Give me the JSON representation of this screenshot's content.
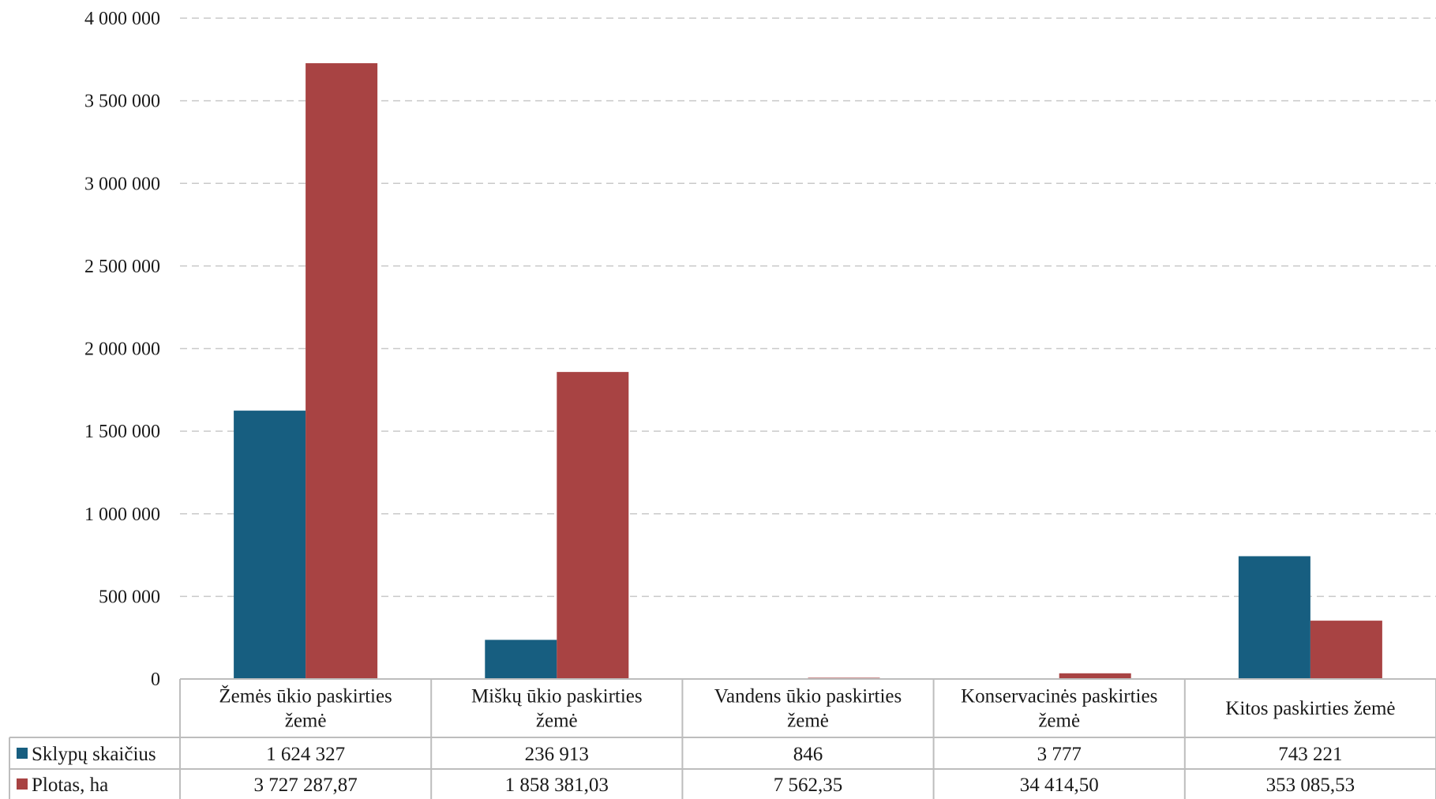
{
  "chart_data": {
    "type": "bar",
    "title": "",
    "xlabel": "",
    "ylabel": "",
    "ylim": [
      0,
      4000000
    ],
    "yticks": [
      0,
      500000,
      1000000,
      1500000,
      2000000,
      2500000,
      3000000,
      3500000,
      4000000
    ],
    "ytick_labels": [
      "0",
      "500 000",
      "1 000 000",
      "1 500 000",
      "2 000 000",
      "2 500 000",
      "3 000 000",
      "3 500 000",
      "4 000 000"
    ],
    "grid": true,
    "legend_placement": "data table, left",
    "categories": [
      [
        "Žemės ūkio paskirties",
        "žemė"
      ],
      [
        "Miškų ūkio paskirties",
        "žemė"
      ],
      [
        "Vandens ūkio paskirties",
        "žemė"
      ],
      [
        "Konservacinės paskirties",
        "žemė"
      ],
      [
        "Kitos paskirties žemė"
      ]
    ],
    "series": [
      {
        "name": "Sklypų skaičius",
        "color": "#175e80",
        "values": [
          1624327,
          236913,
          846,
          3777,
          743221
        ],
        "labels": [
          "1 624 327",
          "236 913",
          "846",
          "3 777",
          "743 221"
        ]
      },
      {
        "name": "Plotas, ha",
        "color": "#a84343",
        "values": [
          3727287.87,
          1858381.03,
          7562.35,
          34414.5,
          353085.53
        ],
        "labels": [
          "3 727 287,87",
          "1 858 381,03",
          "7 562,35",
          "34 414,50",
          "353 085,53"
        ]
      }
    ]
  }
}
